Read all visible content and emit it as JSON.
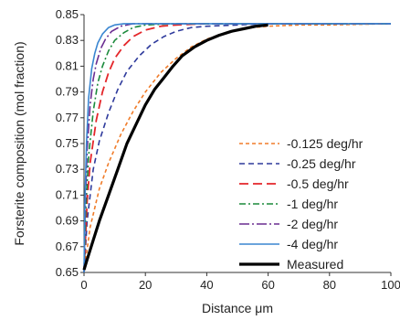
{
  "chart_data": {
    "type": "line",
    "title": "",
    "xlabel": "Distance μm",
    "ylabel": "Forsterite composition (mol fraction)",
    "xlim": [
      0,
      100
    ],
    "ylim": [
      0.65,
      0.85
    ],
    "x_ticks": [
      "0",
      "20",
      "40",
      "60",
      "80",
      "100"
    ],
    "y_ticks": [
      "0.65",
      "0.67",
      "0.69",
      "0.71",
      "0.73",
      "0.75",
      "0.77",
      "0.79",
      "0.81",
      "0.83",
      "0.85"
    ],
    "grid": false,
    "legend_position": "bottom-right",
    "series": [
      {
        "name": "-0.125 deg/hr",
        "color": "#f07c2a",
        "dash": "short-dash",
        "x": [
          0,
          2,
          5,
          8,
          12,
          16,
          20,
          25,
          30,
          35,
          40,
          45,
          50,
          55,
          60,
          70,
          80,
          100
        ],
        "y": [
          0.65,
          0.685,
          0.715,
          0.735,
          0.757,
          0.775,
          0.79,
          0.805,
          0.816,
          0.825,
          0.831,
          0.835,
          0.838,
          0.84,
          0.841,
          0.842,
          0.842,
          0.843
        ]
      },
      {
        "name": "-0.25 deg/hr",
        "color": "#2e3a9c",
        "dash": "dash",
        "x": [
          0,
          1,
          3,
          5,
          8,
          11,
          14,
          18,
          22,
          26,
          30,
          35,
          40,
          50,
          60,
          80,
          100
        ],
        "y": [
          0.65,
          0.69,
          0.73,
          0.752,
          0.774,
          0.792,
          0.806,
          0.818,
          0.827,
          0.833,
          0.837,
          0.84,
          0.841,
          0.842,
          0.843,
          0.843,
          0.843
        ]
      },
      {
        "name": "-0.5 deg/hr",
        "color": "#e4262a",
        "dash": "long-dash",
        "x": [
          0,
          1,
          2,
          4,
          6,
          8,
          10,
          13,
          16,
          20,
          25,
          30,
          40,
          60,
          100
        ],
        "y": [
          0.65,
          0.705,
          0.735,
          0.768,
          0.79,
          0.805,
          0.816,
          0.826,
          0.833,
          0.838,
          0.841,
          0.842,
          0.843,
          0.843,
          0.843
        ]
      },
      {
        "name": "-1 deg/hr",
        "color": "#1b8a3c",
        "dash": "dash-dot",
        "x": [
          0,
          0.6,
          1.5,
          3,
          4.5,
          6,
          8,
          10,
          13,
          16,
          20,
          30,
          100
        ],
        "y": [
          0.65,
          0.7,
          0.74,
          0.775,
          0.797,
          0.81,
          0.822,
          0.83,
          0.836,
          0.84,
          0.842,
          0.843,
          0.843
        ]
      },
      {
        "name": "-2 deg/hr",
        "color": "#6a2d91",
        "dash": "long-dash-dot",
        "x": [
          0,
          0.4,
          1,
          2,
          3,
          4,
          5.5,
          7,
          9,
          12,
          16,
          25,
          100
        ],
        "y": [
          0.65,
          0.7,
          0.745,
          0.78,
          0.8,
          0.812,
          0.824,
          0.831,
          0.837,
          0.841,
          0.843,
          0.843,
          0.843
        ]
      },
      {
        "name": "-4 deg/hr",
        "color": "#3a86d1",
        "dash": "solid",
        "x": [
          0,
          0.3,
          0.8,
          1.5,
          2.5,
          3.5,
          4.5,
          6,
          8,
          10,
          13,
          20,
          100
        ],
        "y": [
          0.65,
          0.705,
          0.75,
          0.785,
          0.808,
          0.82,
          0.828,
          0.835,
          0.84,
          0.842,
          0.843,
          0.843,
          0.843
        ]
      },
      {
        "name": "Measured",
        "color": "#000000",
        "dash": "solid-thick",
        "x": [
          0,
          1,
          3,
          5,
          8,
          11,
          14,
          17,
          20,
          23,
          26,
          29,
          32,
          36,
          40,
          44,
          48,
          52,
          56,
          60
        ],
        "y": [
          0.652,
          0.66,
          0.675,
          0.69,
          0.71,
          0.73,
          0.75,
          0.765,
          0.78,
          0.792,
          0.801,
          0.81,
          0.818,
          0.825,
          0.83,
          0.834,
          0.837,
          0.839,
          0.841,
          0.842
        ]
      }
    ]
  }
}
